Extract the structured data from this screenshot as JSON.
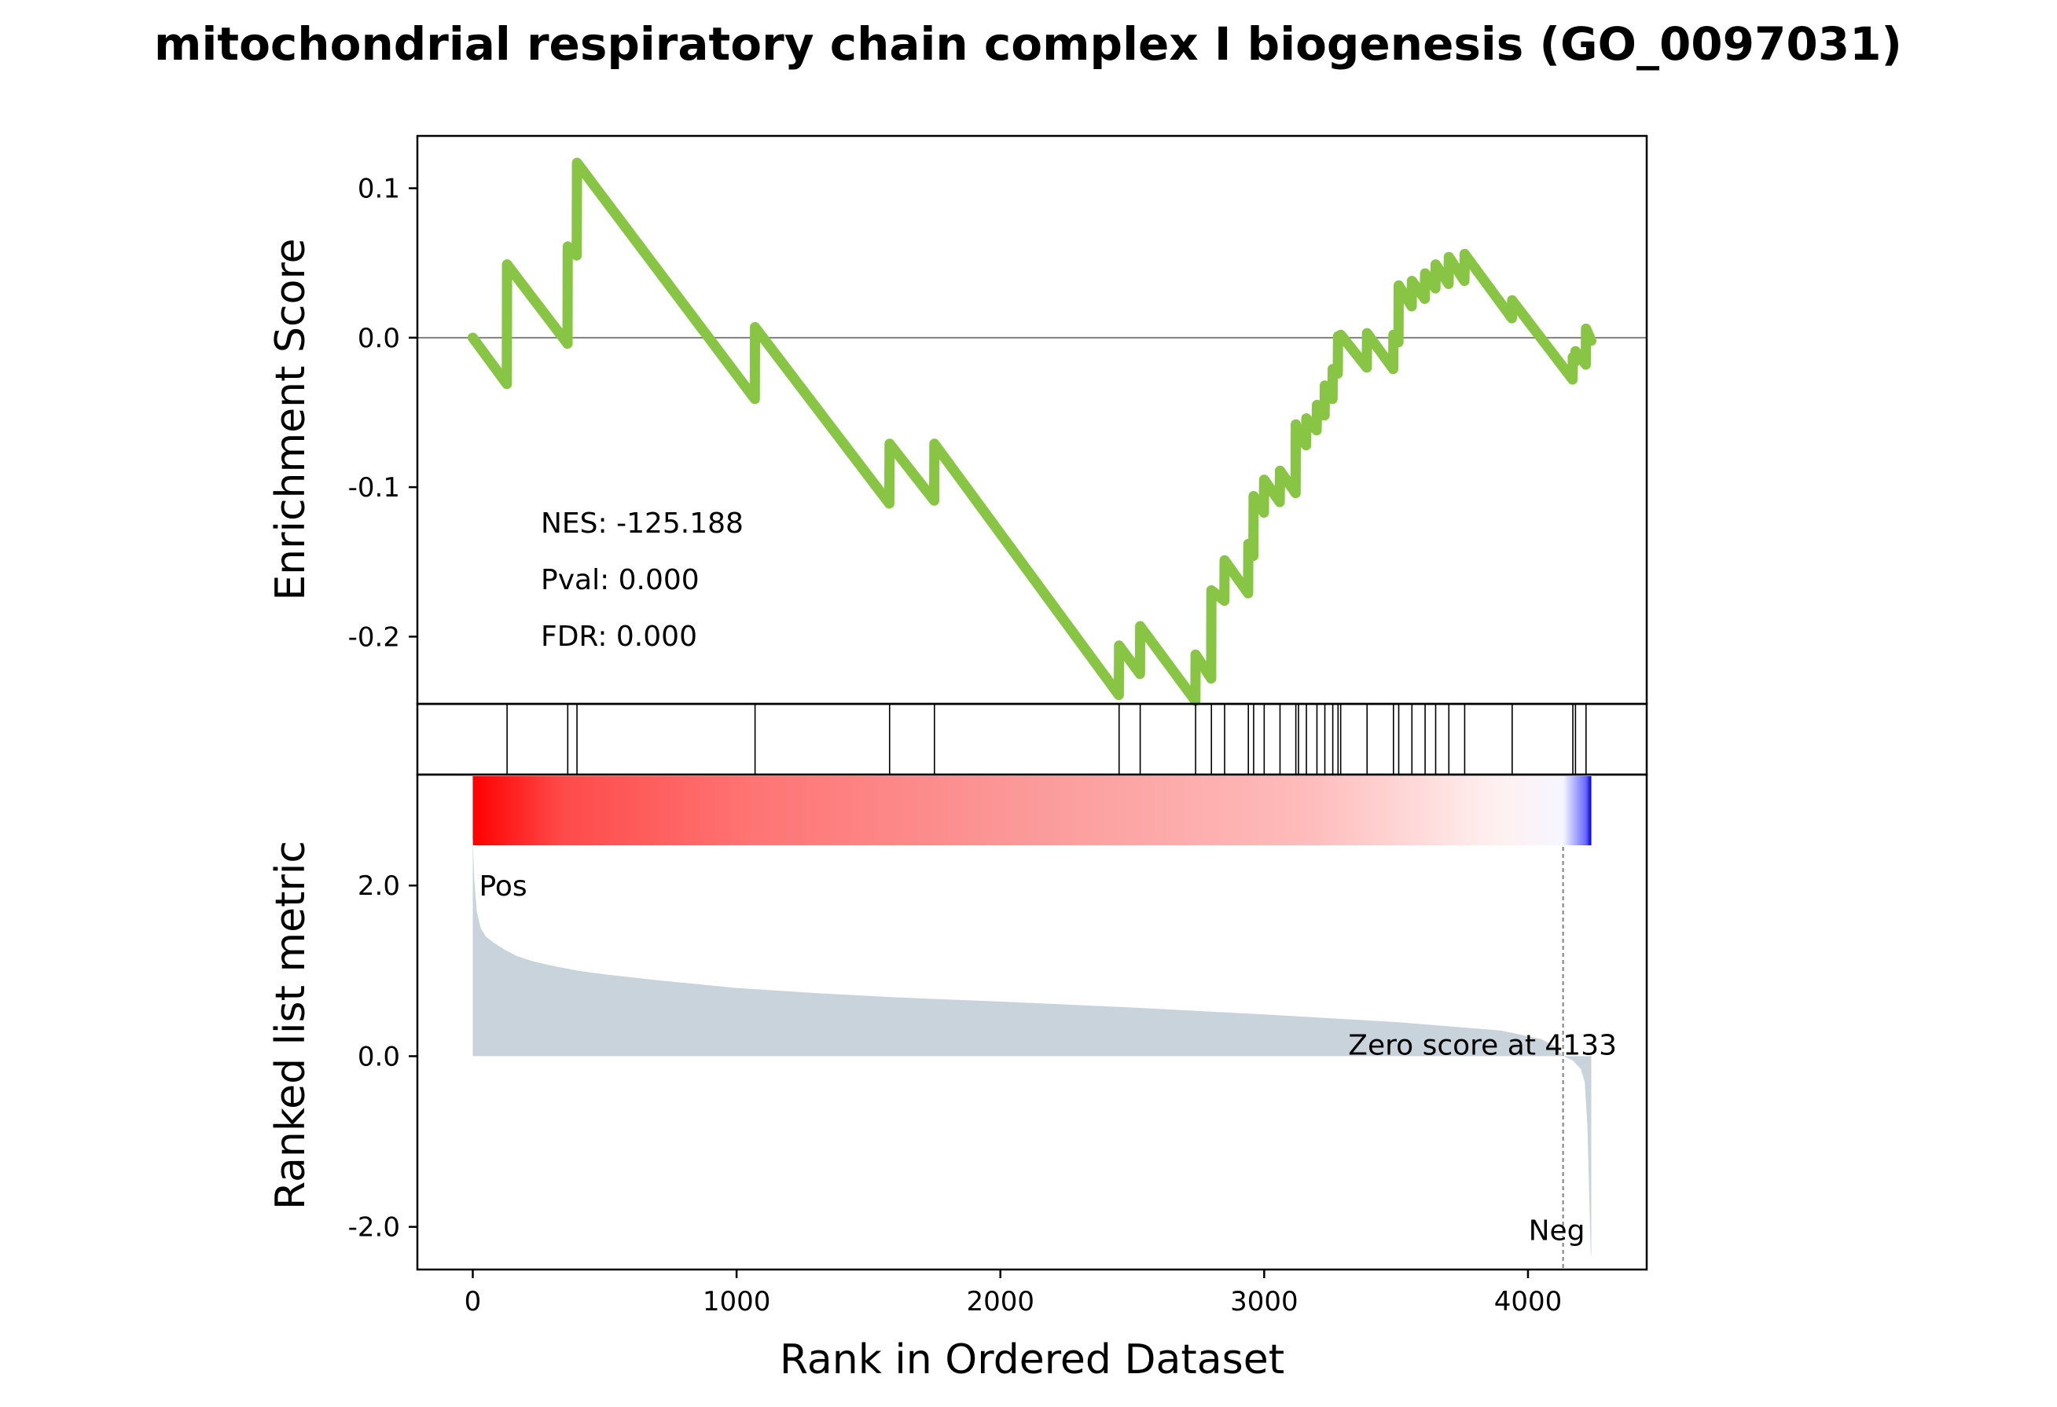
{
  "chart_data": {
    "type": "line",
    "title": "mitochondrial respiratory chain complex I biogenesis (GO_0097031)",
    "xlabel": "Rank in Ordered Dataset",
    "xlim": [
      -210,
      4450
    ],
    "xticks": [
      "0",
      "1000",
      "2000",
      "3000",
      "4000"
    ],
    "colors": {
      "es_line": "#88c544",
      "ranked_fill": "#c9d3dc",
      "pos_label": "#ff0000",
      "neg_label": "#0000ff",
      "zero_line": "#808080"
    },
    "enrichment": {
      "ylabel": "Enrichment Score",
      "ylim": [
        -0.245,
        0.135
      ],
      "yticks": [
        "0.1",
        "0.0",
        "-0.1",
        "-0.2"
      ],
      "stats": {
        "nes": "NES: -125.188",
        "pval": "Pval: 0.000",
        "fdr": "FDR: 0.000"
      },
      "n_genes": 4240,
      "hits": [
        130,
        360,
        395,
        1070,
        1580,
        1750,
        2450,
        2530,
        2740,
        2800,
        2850,
        2940,
        2960,
        3000,
        3060,
        3120,
        3130,
        3160,
        3200,
        3230,
        3260,
        3280,
        3290,
        3390,
        3490,
        3510,
        3560,
        3610,
        3650,
        3700,
        3760,
        3940,
        4170,
        4180,
        4220
      ],
      "es_points": [
        [
          0,
          0.0
        ],
        [
          129,
          -0.031
        ],
        [
          130,
          0.049
        ],
        [
          359,
          -0.004
        ],
        [
          360,
          0.061
        ],
        [
          394,
          0.055
        ],
        [
          395,
          0.117
        ],
        [
          1069,
          -0.041
        ],
        [
          1070,
          0.007
        ],
        [
          1579,
          -0.111
        ],
        [
          1580,
          -0.071
        ],
        [
          1749,
          -0.109
        ],
        [
          1750,
          -0.071
        ],
        [
          2449,
          -0.239
        ],
        [
          2450,
          -0.206
        ],
        [
          2529,
          -0.225
        ],
        [
          2530,
          -0.193
        ],
        [
          2739,
          -0.243
        ],
        [
          2740,
          -0.212
        ],
        [
          2799,
          -0.228
        ],
        [
          2800,
          -0.169
        ],
        [
          2849,
          -0.176
        ],
        [
          2850,
          -0.149
        ],
        [
          2939,
          -0.171
        ],
        [
          2940,
          -0.138
        ],
        [
          2959,
          -0.146
        ],
        [
          2960,
          -0.106
        ],
        [
          2999,
          -0.117
        ],
        [
          3000,
          -0.095
        ],
        [
          3059,
          -0.11
        ],
        [
          3060,
          -0.089
        ],
        [
          3119,
          -0.104
        ],
        [
          3120,
          -0.058
        ],
        [
          3129,
          -0.064
        ],
        [
          3130,
          -0.066
        ],
        [
          3159,
          -0.072
        ],
        [
          3160,
          -0.054
        ],
        [
          3199,
          -0.062
        ],
        [
          3200,
          -0.045
        ],
        [
          3229,
          -0.052
        ],
        [
          3230,
          -0.032
        ],
        [
          3259,
          -0.041
        ],
        [
          3260,
          -0.021
        ],
        [
          3279,
          -0.024
        ],
        [
          3280,
          0.001
        ],
        [
          3289,
          -0.001
        ],
        [
          3290,
          0.002
        ],
        [
          3389,
          -0.02
        ],
        [
          3390,
          0.003
        ],
        [
          3489,
          -0.021
        ],
        [
          3490,
          0.002
        ],
        [
          3509,
          -0.003
        ],
        [
          3510,
          0.035
        ],
        [
          3559,
          0.021
        ],
        [
          3560,
          0.038
        ],
        [
          3609,
          0.026
        ],
        [
          3610,
          0.043
        ],
        [
          3649,
          0.033
        ],
        [
          3650,
          0.049
        ],
        [
          3699,
          0.036
        ],
        [
          3700,
          0.054
        ],
        [
          3759,
          0.038
        ],
        [
          3760,
          0.056
        ],
        [
          3939,
          0.013
        ],
        [
          3940,
          0.025
        ],
        [
          4169,
          -0.028
        ],
        [
          4170,
          -0.013
        ],
        [
          4179,
          -0.016
        ],
        [
          4180,
          -0.009
        ],
        [
          4219,
          -0.018
        ],
        [
          4220,
          0.006
        ],
        [
          4240,
          -0.002
        ]
      ]
    },
    "ranked": {
      "ylabel": "Ranked list metric",
      "ylim": [
        -2.5,
        3.3
      ],
      "yticks": [
        "2.0",
        "0.0",
        "-2.0"
      ],
      "pos_label": "Pos",
      "neg_label": "Neg",
      "zero_cross_rank": 4133,
      "zero_cross_text": "Zero score at 4133",
      "metric_points": [
        [
          0,
          2.55
        ],
        [
          5,
          2.1
        ],
        [
          15,
          1.7
        ],
        [
          30,
          1.5
        ],
        [
          50,
          1.4
        ],
        [
          80,
          1.33
        ],
        [
          120,
          1.25
        ],
        [
          170,
          1.17
        ],
        [
          230,
          1.11
        ],
        [
          300,
          1.06
        ],
        [
          400,
          1.0
        ],
        [
          500,
          0.96
        ],
        [
          700,
          0.89
        ],
        [
          1000,
          0.8
        ],
        [
          1300,
          0.74
        ],
        [
          1600,
          0.69
        ],
        [
          2000,
          0.64
        ],
        [
          2500,
          0.57
        ],
        [
          3000,
          0.49
        ],
        [
          3500,
          0.4
        ],
        [
          3900,
          0.3
        ],
        [
          4050,
          0.2
        ],
        [
          4100,
          0.12
        ],
        [
          4133,
          0.0
        ],
        [
          4170,
          -0.05
        ],
        [
          4200,
          -0.15
        ],
        [
          4215,
          -0.3
        ],
        [
          4225,
          -0.8
        ],
        [
          4232,
          -1.6
        ],
        [
          4238,
          -2.3
        ],
        [
          4240,
          -2.35
        ]
      ]
    }
  }
}
